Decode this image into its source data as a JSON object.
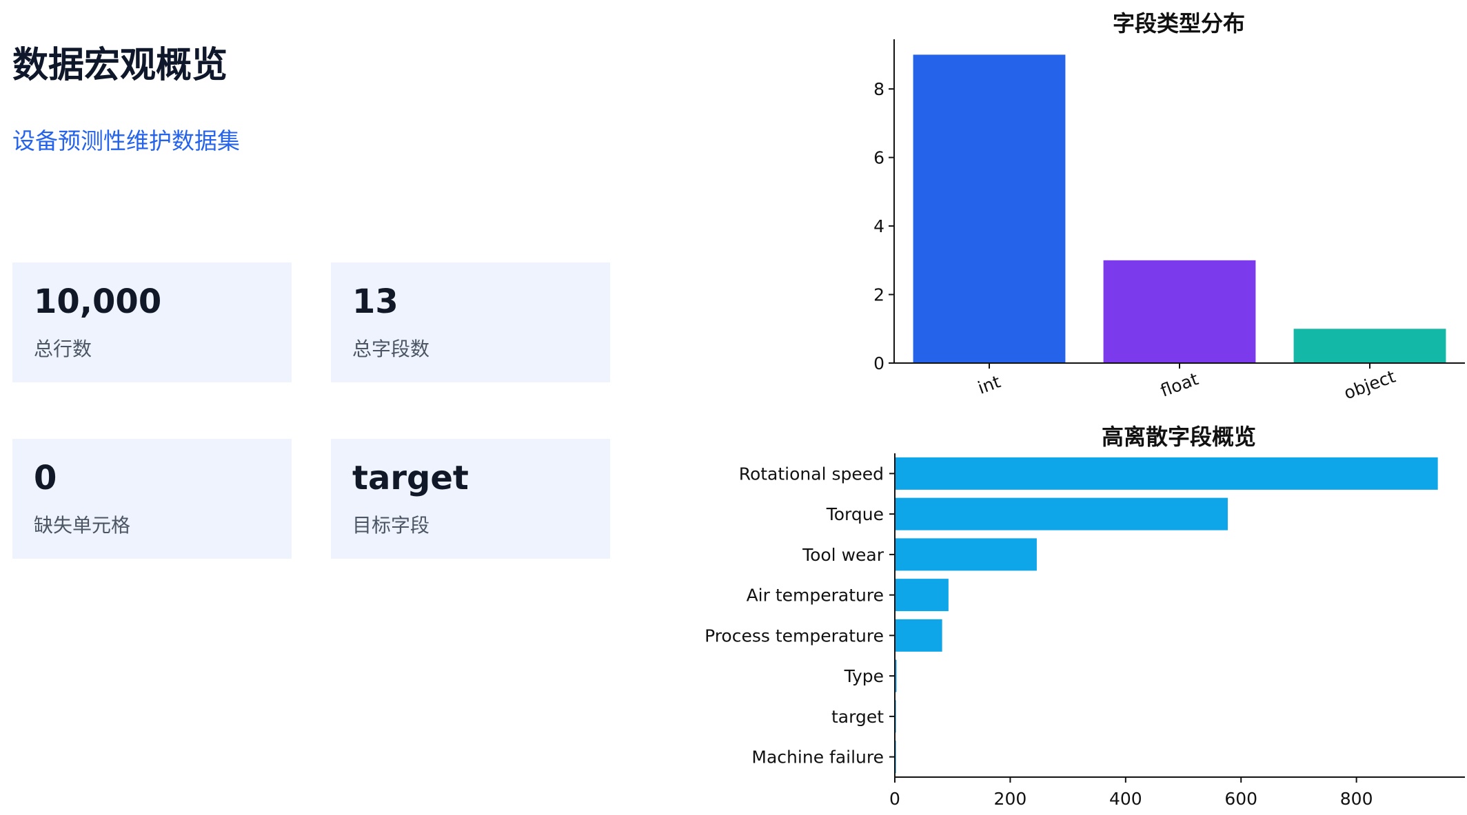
{
  "header": {
    "title": "数据宏观概览",
    "subtitle": "设备预测性维护数据集"
  },
  "stats": [
    {
      "value": "10,000",
      "label": "总行数"
    },
    {
      "value": "13",
      "label": "总字段数"
    },
    {
      "value": "0",
      "label": "缺失单元格"
    },
    {
      "value": "target",
      "label": "目标字段"
    }
  ],
  "chart_data": [
    {
      "type": "bar",
      "title": "字段类型分布",
      "categories": [
        "int",
        "float",
        "object"
      ],
      "values": [
        9,
        3,
        1
      ],
      "colors": [
        "#2563eb",
        "#7c3aed",
        "#14b8a6"
      ],
      "ylim": [
        0,
        9.45
      ],
      "yticks": [
        "0",
        "2",
        "4",
        "6",
        "8"
      ],
      "xlabel": "",
      "ylabel": "",
      "grid": false
    },
    {
      "type": "bar",
      "orientation": "horizontal",
      "title": "高离散字段概览",
      "categories": [
        "Rotational speed",
        "Torque",
        "Tool wear",
        "Air temperature",
        "Process temperature",
        "Type",
        "target",
        "Machine failure"
      ],
      "values": [
        941,
        577,
        246,
        93,
        82,
        3,
        2,
        2
      ],
      "color": "#0ea5e9",
      "xlim": [
        0,
        988
      ],
      "xticks": [
        "0",
        "200",
        "400",
        "600",
        "800"
      ],
      "xlabel": "",
      "ylabel": "",
      "grid": false
    }
  ]
}
